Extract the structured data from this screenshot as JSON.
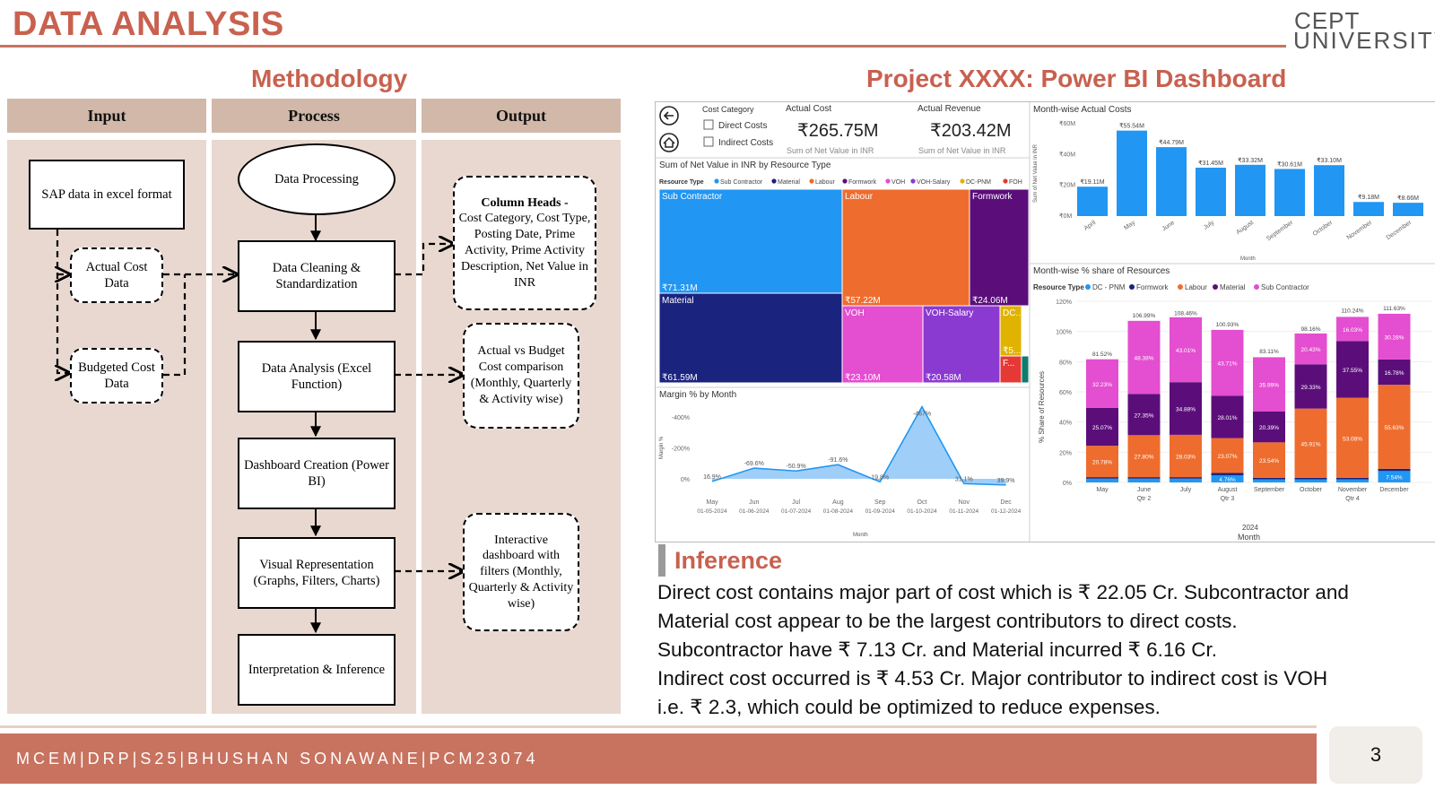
{
  "header": {
    "title": "DATA ANALYSIS",
    "logo_top": "CEPT",
    "logo_bottom": "UNIVERSITY"
  },
  "methodology": {
    "title": "Methodology",
    "columns": [
      "Input",
      "Process",
      "Output"
    ],
    "inputs": [
      "SAP data in excel format",
      "Actual Cost Data",
      "Budgeted Cost Data"
    ],
    "process": [
      "Data Processing",
      "Data Cleaning & Standardization",
      "Data Analysis (Excel Function)",
      "Dashboard Creation (Power BI)",
      "Visual Representation (Graphs, Filters, Charts)",
      "Interpretation & Inference"
    ],
    "outputs": {
      "column_heads_title": "Column Heads -",
      "column_heads_text": "Cost Category, Cost Type, Posting Date, Prime Activity, Prime Activity Description, Net Value in INR",
      "comparison": "Actual vs Budget Cost comparison (Monthly, Quarterly & Activity wise)",
      "interactive": "Interactive dashboard with filters (Monthly, Quarterly & Activity wise)"
    }
  },
  "dashboard": {
    "title": "Project XXXX: Power BI Dashboard",
    "filter": {
      "label": "Cost Category",
      "options": [
        "Direct Costs",
        "Indirect Costs"
      ]
    },
    "kpis": [
      {
        "label": "Actual Cost",
        "value": "₹265.75M",
        "sub": "Sum of Net Value in INR"
      },
      {
        "label": "Actual Revenue",
        "value": "₹203.42M",
        "sub": "Sum of Net Value in INR"
      }
    ],
    "treemap": {
      "title": "Sum of Net Value in INR by Resource Type",
      "legend_title": "Resource Type",
      "legend": [
        {
          "name": "Sub Contractor",
          "color": "#2196f3"
        },
        {
          "name": "Material",
          "color": "#1a237e"
        },
        {
          "name": "Labour",
          "color": "#ee6d2e"
        },
        {
          "name": "Formwork",
          "color": "#5b0e7a"
        },
        {
          "name": "VOH",
          "color": "#e44ed0"
        },
        {
          "name": "VOH-Salary",
          "color": "#8b3ad1"
        },
        {
          "name": "DC-PNM",
          "color": "#e0b300"
        },
        {
          "name": "FOH",
          "color": "#e53935"
        }
      ],
      "tiles": [
        {
          "name": "Sub Contractor",
          "value": "₹71.31M"
        },
        {
          "name": "Labour",
          "value": "₹57.22M"
        },
        {
          "name": "Formwork",
          "value": "₹24.06M"
        },
        {
          "name": "Material",
          "value": "₹61.59M"
        },
        {
          "name": "VOH",
          "value": "₹23.10M"
        },
        {
          "name": "VOH-Salary",
          "value": "₹20.58M"
        },
        {
          "name": "DC...",
          "value": "₹5..."
        },
        {
          "name": "F...",
          "value": ""
        }
      ]
    },
    "month_costs": {
      "title": "Month-wise Actual Costs",
      "ylabel": "Sum of Net Value in INR",
      "xlabel": "Month",
      "y_ticks": [
        "₹0M",
        "₹20M",
        "₹40M",
        "₹60M"
      ],
      "categories": [
        "April",
        "May",
        "June",
        "July",
        "August",
        "September",
        "October",
        "November",
        "December"
      ],
      "values": [
        19.11,
        55.54,
        44.79,
        31.45,
        33.32,
        30.61,
        33.1,
        9.18,
        8.66
      ],
      "labels": [
        "₹19.11M",
        "₹55.54M",
        "₹44.79M",
        "₹31.45M",
        "₹33.32M",
        "₹30.61M",
        "₹33.10M",
        "₹9.18M",
        "₹8.66M"
      ]
    },
    "margin": {
      "title": "Margin % by Month",
      "ylabel": "Margin %",
      "xlabel": "Month",
      "y_ticks": [
        "0%",
        "-200%",
        "-400%"
      ],
      "months": [
        "May",
        "Jun",
        "Jul",
        "Aug",
        "Sep",
        "Oct",
        "Nov",
        "Dec"
      ],
      "dates": [
        "01-05-2024",
        "01-06-2024",
        "01-07-2024",
        "01-08-2024",
        "01-09-2024",
        "01-10-2024",
        "01-11-2024",
        "01-12-2024"
      ],
      "values": [
        16.9,
        -69.6,
        -50.9,
        -91.6,
        19.8,
        -467.0,
        31.1,
        39.9
      ],
      "labels": [
        "16.9%",
        "-69.6%",
        "-50.9%",
        "-91.6%",
        "19.8%",
        "-467%",
        "31.1%",
        "39.9%"
      ]
    },
    "share": {
      "title": "Month-wise % share of Resources",
      "legend_title": "Resource Type",
      "legend": [
        {
          "name": "DC - PNM",
          "color": "#2196f3"
        },
        {
          "name": "Formwork",
          "color": "#1a237e"
        },
        {
          "name": "Labour",
          "color": "#ee6d2e"
        },
        {
          "name": "Material",
          "color": "#5b0e7a"
        },
        {
          "name": "Sub Contractor",
          "color": "#e44ed0"
        }
      ],
      "ylabel": "% Share of Resources",
      "xlabel": "Month",
      "y_ticks": [
        "0%",
        "20%",
        "40%",
        "60%",
        "80%",
        "100%",
        "120%"
      ],
      "months": [
        "May",
        "June",
        "July",
        "August",
        "September",
        "October",
        "November",
        "December"
      ],
      "quarters": [
        {
          "label": "Qtr 2",
          "under": 1
        },
        {
          "label": "Qtr 3",
          "under": 3
        },
        {
          "label": "Qtr 4",
          "under": 6
        }
      ],
      "year": "2024",
      "totals": [
        "81.52%",
        "106.99%",
        "108.46%",
        "100.93%",
        "83.11%",
        "98.16%",
        "110.24%",
        "111.63%"
      ],
      "total_values": [
        81.52,
        106.99,
        108.46,
        100.93,
        83.11,
        98.16,
        110.24,
        111.63
      ],
      "stacks": [
        [
          {
            "v": 2.5,
            "c": "#2196f3",
            "l": ""
          },
          {
            "v": 1.0,
            "c": "#1a237e",
            "l": ""
          },
          {
            "v": 20.78,
            "c": "#ee6d2e",
            "l": "20.78%"
          },
          {
            "v": 25.07,
            "c": "#5b0e7a",
            "l": "25.07%"
          },
          {
            "v": 32.23,
            "c": "#e44ed0",
            "l": "32.23%"
          }
        ],
        [
          {
            "v": 2.5,
            "c": "#2196f3",
            "l": ""
          },
          {
            "v": 1.0,
            "c": "#1a237e",
            "l": ""
          },
          {
            "v": 27.8,
            "c": "#ee6d2e",
            "l": "27.80%"
          },
          {
            "v": 27.35,
            "c": "#5b0e7a",
            "l": "27.35%"
          },
          {
            "v": 48.38,
            "c": "#e44ed0",
            "l": "48.38%"
          }
        ],
        [
          {
            "v": 2.5,
            "c": "#2196f3",
            "l": ""
          },
          {
            "v": 1.0,
            "c": "#1a237e",
            "l": ""
          },
          {
            "v": 28.03,
            "c": "#ee6d2e",
            "l": "28.03%"
          },
          {
            "v": 34.88,
            "c": "#5b0e7a",
            "l": "34.88%"
          },
          {
            "v": 43.01,
            "c": "#e44ed0",
            "l": "43.01%"
          }
        ],
        [
          {
            "v": 4.76,
            "c": "#2196f3",
            "l": "4.76%"
          },
          {
            "v": 1.5,
            "c": "#1a237e",
            "l": ""
          },
          {
            "v": 23.07,
            "c": "#ee6d2e",
            "l": "23.07%"
          },
          {
            "v": 28.01,
            "c": "#5b0e7a",
            "l": "28.01%"
          },
          {
            "v": 43.71,
            "c": "#e44ed0",
            "l": "43.71%"
          }
        ],
        [
          {
            "v": 2.0,
            "c": "#2196f3",
            "l": ""
          },
          {
            "v": 1.0,
            "c": "#1a237e",
            "l": ""
          },
          {
            "v": 23.54,
            "c": "#ee6d2e",
            "l": "23.54%"
          },
          {
            "v": 20.39,
            "c": "#5b0e7a",
            "l": "20.39%"
          },
          {
            "v": 35.99,
            "c": "#e44ed0",
            "l": "35.99%"
          }
        ],
        [
          {
            "v": 2.0,
            "c": "#2196f3",
            "l": ""
          },
          {
            "v": 1.0,
            "c": "#1a237e",
            "l": ""
          },
          {
            "v": 45.91,
            "c": "#ee6d2e",
            "l": "45.91%"
          },
          {
            "v": 29.33,
            "c": "#5b0e7a",
            "l": "29.33%"
          },
          {
            "v": 20.43,
            "c": "#e44ed0",
            "l": "20.43%"
          }
        ],
        [
          {
            "v": 2.0,
            "c": "#2196f3",
            "l": ""
          },
          {
            "v": 1.0,
            "c": "#1a237e",
            "l": ""
          },
          {
            "v": 53.08,
            "c": "#ee6d2e",
            "l": "53.08%"
          },
          {
            "v": 37.55,
            "c": "#5b0e7a",
            "l": "37.55%"
          },
          {
            "v": 16.03,
            "c": "#e44ed0",
            "l": "16.03%"
          }
        ],
        [
          {
            "v": 7.54,
            "c": "#2196f3",
            "l": "7.54%"
          },
          {
            "v": 1.5,
            "c": "#1a237e",
            "l": ""
          },
          {
            "v": 55.63,
            "c": "#ee6d2e",
            "l": "55.63%"
          },
          {
            "v": 16.78,
            "c": "#5b0e7a",
            "l": "16.78%"
          },
          {
            "v": 30.28,
            "c": "#e44ed0",
            "l": "30.28%"
          }
        ]
      ]
    }
  },
  "inference": {
    "title": "Inference",
    "lines": [
      "Direct cost contains major part of cost which is ₹ 22.05 Cr. Subcontractor and",
      "Material cost appear to be the largest contributors to direct costs.",
      "Subcontractor have ₹ 7.13 Cr. and Material incurred ₹ 6.16 Cr.",
      "Indirect cost occurred is ₹ 4.53 Cr. Major contributor to indirect cost is VOH",
      "i.e. ₹ 2.3, which could be optimized to reduce expenses."
    ]
  },
  "footer": {
    "text": "MCEM|DRP|S25|BHUSHAN SONAWANE|PCM23074",
    "page": "3"
  },
  "chart_data": [
    {
      "type": "bar",
      "title": "Month-wise Actual Costs",
      "xlabel": "Month",
      "ylabel": "Sum of Net Value in INR",
      "categories": [
        "April",
        "May",
        "June",
        "July",
        "August",
        "September",
        "October",
        "November",
        "December"
      ],
      "values": [
        19.11,
        55.54,
        44.79,
        31.45,
        33.32,
        30.61,
        33.1,
        9.18,
        8.66
      ],
      "ylim": [
        0,
        60
      ]
    },
    {
      "type": "area",
      "title": "Margin % by Month",
      "xlabel": "Month",
      "ylabel": "Margin %",
      "categories": [
        "May",
        "Jun",
        "Jul",
        "Aug",
        "Sep",
        "Oct",
        "Nov",
        "Dec"
      ],
      "values": [
        16.9,
        -69.6,
        -50.9,
        -91.6,
        19.8,
        -467.0,
        31.1,
        39.9
      ]
    },
    {
      "type": "bar",
      "title": "Month-wise % share of Resources",
      "xlabel": "Month",
      "ylabel": "% Share of Resources",
      "categories": [
        "May",
        "June",
        "July",
        "August",
        "September",
        "October",
        "November",
        "December"
      ],
      "series": [
        {
          "name": "Labour",
          "values": [
            20.78,
            27.8,
            28.03,
            23.07,
            23.54,
            45.91,
            53.08,
            55.63
          ]
        },
        {
          "name": "Material",
          "values": [
            25.07,
            27.35,
            34.88,
            28.01,
            20.39,
            29.33,
            37.55,
            16.78
          ]
        },
        {
          "name": "Sub Contractor",
          "values": [
            32.23,
            48.38,
            43.01,
            43.71,
            35.99,
            20.43,
            16.03,
            30.28
          ]
        }
      ],
      "ylim": [
        0,
        120
      ]
    },
    {
      "type": "heatmap",
      "title": "Sum of Net Value in INR by Resource Type",
      "categories": [
        "Sub Contractor",
        "Material",
        "Labour",
        "Formwork",
        "VOH",
        "VOH-Salary"
      ],
      "values": [
        71.31,
        61.59,
        57.22,
        24.06,
        23.1,
        20.58
      ]
    }
  ]
}
